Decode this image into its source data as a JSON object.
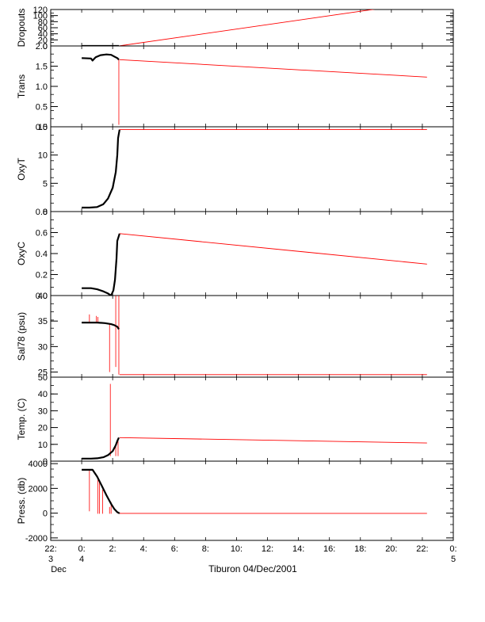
{
  "chart_data": {
    "type": "line",
    "title": "",
    "xlabel": "Tiburon 04/Dec/2001",
    "x_tick_hours": [
      -2,
      0,
      2,
      4,
      6,
      8,
      10,
      12,
      14,
      16,
      18,
      20,
      22,
      24
    ],
    "x_tick_labels": [
      "22:",
      "0:",
      "2:",
      "4:",
      "6:",
      "8:",
      "10:",
      "12:",
      "14:",
      "16:",
      "18:",
      "20:",
      "22:",
      "0:"
    ],
    "x_day_labels": [
      {
        "hour": -2,
        "day": "3",
        "month": "Dec"
      },
      {
        "hour": 0,
        "day": "4",
        "month": ""
      },
      {
        "hour": 24,
        "day": "5",
        "month": ""
      }
    ],
    "xlim": [
      -2,
      24
    ],
    "colors": {
      "data": "#000000",
      "interp": "#ff0000",
      "axes": "#000000"
    },
    "panels": [
      {
        "ylabel": "Dropouts",
        "ylim": [
          0,
          120
        ],
        "yticks": [
          0,
          20,
          40,
          60,
          80,
          100,
          120
        ],
        "ytick_labels": [
          "0",
          "20",
          "40",
          "60",
          "80",
          "100",
          "120"
        ],
        "series": [
          {
            "role": "measured",
            "points": [
              [
                0.0,
                0
              ],
              [
                0.5,
                0
              ],
              [
                1.0,
                0
              ],
              [
                1.5,
                0
              ],
              [
                2.0,
                0
              ],
              [
                2.4,
                0
              ]
            ]
          },
          {
            "role": "interpolated",
            "points": [
              [
                2.4,
                0
              ],
              [
                20.0,
                129
              ]
            ]
          }
        ],
        "spikes": []
      },
      {
        "ylabel": "Trans",
        "ylim": [
          0.0,
          2.0
        ],
        "yticks": [
          0.0,
          0.5,
          1.0,
          1.5,
          2.0
        ],
        "ytick_labels": [
          "0.0",
          "0.5",
          "1.0",
          "1.5",
          "2.0"
        ],
        "series": [
          {
            "role": "measured",
            "points": [
              [
                0.0,
                1.7
              ],
              [
                0.6,
                1.69
              ],
              [
                0.7,
                1.64
              ],
              [
                0.9,
                1.72
              ],
              [
                1.2,
                1.77
              ],
              [
                1.6,
                1.79
              ],
              [
                1.9,
                1.78
              ],
              [
                2.1,
                1.74
              ],
              [
                2.3,
                1.7
              ],
              [
                2.4,
                1.66
              ]
            ]
          },
          {
            "role": "interpolated",
            "points": [
              [
                2.45,
                1.66
              ],
              [
                22.3,
                1.23
              ]
            ]
          }
        ],
        "spikes": [
          [
            2.4,
            0.05,
            1.66
          ]
        ]
      },
      {
        "ylabel": "OxyT",
        "ylim": [
          0,
          15
        ],
        "yticks": [
          0,
          5,
          10,
          15
        ],
        "ytick_labels": [
          "0",
          "5",
          "10",
          "15"
        ],
        "series": [
          {
            "role": "measured",
            "points": [
              [
                0.0,
                0.7
              ],
              [
                0.5,
                0.7
              ],
              [
                1.0,
                0.8
              ],
              [
                1.4,
                1.3
              ],
              [
                1.7,
                2.3
              ],
              [
                2.0,
                4.2
              ],
              [
                2.2,
                7.0
              ],
              [
                2.3,
                10.0
              ],
              [
                2.35,
                13.0
              ],
              [
                2.45,
                14.5
              ]
            ]
          },
          {
            "role": "interpolated",
            "points": [
              [
                2.45,
                14.5
              ],
              [
                22.3,
                14.5
              ]
            ]
          }
        ],
        "spikes": []
      },
      {
        "ylabel": "OxyC",
        "ylim": [
          0.0,
          0.8
        ],
        "yticks": [
          0.0,
          0.2,
          0.4,
          0.6,
          0.8
        ],
        "ytick_labels": [
          "0.0",
          "0.2",
          "0.4",
          "0.6",
          "0.8"
        ],
        "series": [
          {
            "role": "measured",
            "points": [
              [
                0.0,
                0.07
              ],
              [
                0.6,
                0.07
              ],
              [
                1.0,
                0.06
              ],
              [
                1.4,
                0.04
              ],
              [
                1.7,
                0.02
              ],
              [
                1.9,
                0.0
              ],
              [
                2.05,
                0.05
              ],
              [
                2.15,
                0.15
              ],
              [
                2.25,
                0.35
              ],
              [
                2.3,
                0.52
              ],
              [
                2.45,
                0.59
              ]
            ]
          },
          {
            "role": "interpolated",
            "points": [
              [
                2.45,
                0.59
              ],
              [
                22.3,
                0.3
              ]
            ]
          }
        ],
        "spikes": []
      },
      {
        "ylabel": "Sal78 (psu)",
        "ylim": [
          24,
          40
        ],
        "yticks": [
          25,
          30,
          35,
          40
        ],
        "ytick_labels": [
          "25",
          "30",
          "35",
          "40"
        ],
        "series": [
          {
            "role": "measured",
            "points": [
              [
                0.0,
                34.7
              ],
              [
                0.6,
                34.7
              ],
              [
                1.0,
                34.7
              ],
              [
                1.5,
                34.6
              ],
              [
                1.9,
                34.4
              ],
              [
                2.1,
                34.2
              ],
              [
                2.3,
                33.9
              ],
              [
                2.4,
                33.4
              ]
            ]
          },
          {
            "role": "interpolated",
            "points": [
              [
                2.45,
                24.5
              ],
              [
                22.3,
                24.5
              ]
            ]
          }
        ],
        "spikes": [
          [
            0.5,
            34.7,
            36.3
          ],
          [
            0.95,
            34.7,
            36.0
          ],
          [
            1.05,
            34.7,
            35.8
          ],
          [
            1.8,
            25.0,
            34.5
          ],
          [
            2.2,
            26.0,
            40.0
          ],
          [
            2.4,
            24.5,
            40.0
          ]
        ]
      },
      {
        "ylabel": "Temp. (C)",
        "ylim": [
          0,
          50
        ],
        "yticks": [
          0,
          10,
          20,
          30,
          40,
          50
        ],
        "ytick_labels": [
          "0",
          "10",
          "20",
          "30",
          "40",
          "50"
        ],
        "series": [
          {
            "role": "measured",
            "points": [
              [
                0.0,
                1.5
              ],
              [
                0.6,
                1.5
              ],
              [
                1.0,
                1.7
              ],
              [
                1.4,
                2.3
              ],
              [
                1.7,
                3.6
              ],
              [
                2.0,
                6.0
              ],
              [
                2.2,
                9.5
              ],
              [
                2.3,
                12.0
              ],
              [
                2.4,
                14.0
              ]
            ]
          },
          {
            "role": "interpolated",
            "points": [
              [
                2.45,
                14.0
              ],
              [
                22.3,
                10.8
              ]
            ]
          }
        ],
        "spikes": [
          [
            1.85,
            3.0,
            46.0
          ],
          [
            2.2,
            3.0,
            9.8
          ],
          [
            2.35,
            3.0,
            12.0
          ]
        ]
      },
      {
        "ylabel": "Press. (db)",
        "ylim": [
          -2200,
          4200
        ],
        "yticks": [
          -2000,
          0,
          2000,
          4000
        ],
        "ytick_labels": [
          "-2000",
          "0",
          "2000",
          "4000"
        ],
        "series": [
          {
            "role": "measured",
            "points": [
              [
                0.0,
                3500
              ],
              [
                0.7,
                3500
              ],
              [
                1.0,
                2950
              ],
              [
                1.3,
                2200
              ],
              [
                1.6,
                1450
              ],
              [
                1.9,
                750
              ],
              [
                2.1,
                350
              ],
              [
                2.3,
                80
              ],
              [
                2.45,
                -20
              ]
            ]
          },
          {
            "role": "interpolated",
            "points": [
              [
                2.45,
                -20
              ],
              [
                22.3,
                -20
              ]
            ]
          }
        ],
        "spikes": [
          [
            0.5,
            150,
            3500
          ],
          [
            1.05,
            -50,
            2700
          ],
          [
            1.15,
            -50,
            2500
          ],
          [
            1.35,
            -50,
            1900
          ],
          [
            1.8,
            -50,
            500
          ],
          [
            1.9,
            -50,
            900
          ]
        ]
      }
    ]
  }
}
